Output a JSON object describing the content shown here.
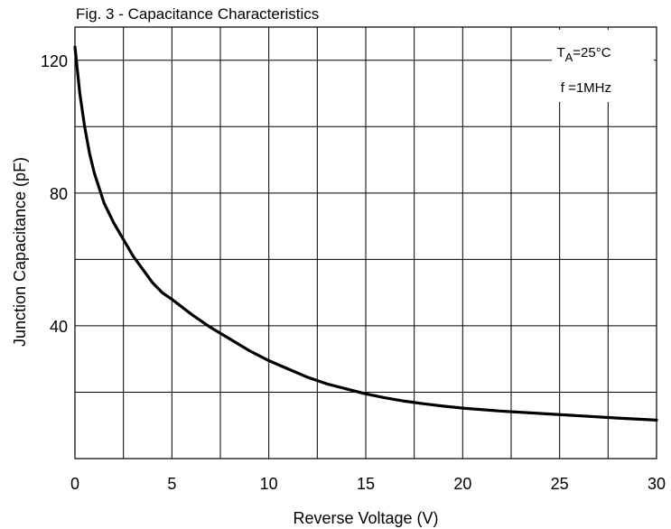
{
  "chart_data": {
    "type": "line",
    "title": "Fig. 3 - Capacitance Characteristics",
    "xlabel": "Reverse Voltage (V)",
    "ylabel": "Junction Capacitance (pF)",
    "xlim": [
      0,
      30
    ],
    "ylim": [
      0,
      130
    ],
    "x_ticks": [
      0,
      5,
      10,
      15,
      20,
      25,
      30
    ],
    "x_tick_labels": [
      "0",
      "5",
      "10",
      "15",
      "20",
      "25",
      "30"
    ],
    "y_ticks": [
      40,
      80,
      120
    ],
    "y_tick_labels": [
      "40",
      "80",
      "120"
    ],
    "grid": true,
    "annotations": {
      "temperature_prefix": "T",
      "temperature_subscript": "A",
      "temperature_value": "=25°C",
      "frequency": "f =1MHz"
    },
    "series": [
      {
        "x": [
          0,
          0.25,
          0.5,
          0.75,
          1,
          1.5,
          2,
          2.5,
          3,
          3.5,
          4,
          4.5,
          5,
          6,
          7,
          8,
          9,
          10,
          11,
          12,
          13,
          14,
          15,
          16,
          17,
          18,
          19,
          20,
          22,
          24,
          26,
          28,
          30
        ],
        "values": [
          124,
          110,
          100,
          92,
          86,
          77,
          71,
          66,
          61,
          57,
          53,
          50,
          48,
          43.5,
          39.5,
          36,
          32.5,
          29.5,
          27,
          24.5,
          22.5,
          21,
          19.5,
          18.3,
          17.3,
          16.5,
          15.8,
          15.2,
          14.3,
          13.6,
          12.9,
          12.2,
          11.6
        ]
      }
    ]
  }
}
